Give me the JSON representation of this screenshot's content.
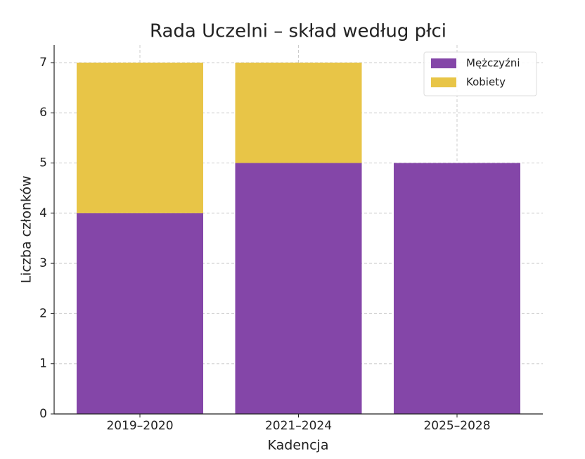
{
  "chart_data": {
    "type": "stacked_bar",
    "title": "Rada Uczelni – skład według płci",
    "xlabel": "Kadencja",
    "ylabel": "Liczba członków",
    "categories": [
      "2019–2020",
      "2021–2024",
      "2025–2028"
    ],
    "series": [
      {
        "name": "Mężczyźni",
        "color": "#8446a8",
        "values": [
          4,
          5,
          5
        ]
      },
      {
        "name": "Kobiety",
        "color": "#e8c547",
        "values": [
          3,
          2,
          0
        ]
      }
    ],
    "ylim": [
      0,
      7.35
    ],
    "yticks": [
      0,
      1,
      2,
      3,
      4,
      5,
      6,
      7
    ],
    "grid": true,
    "legend": "upper right"
  }
}
